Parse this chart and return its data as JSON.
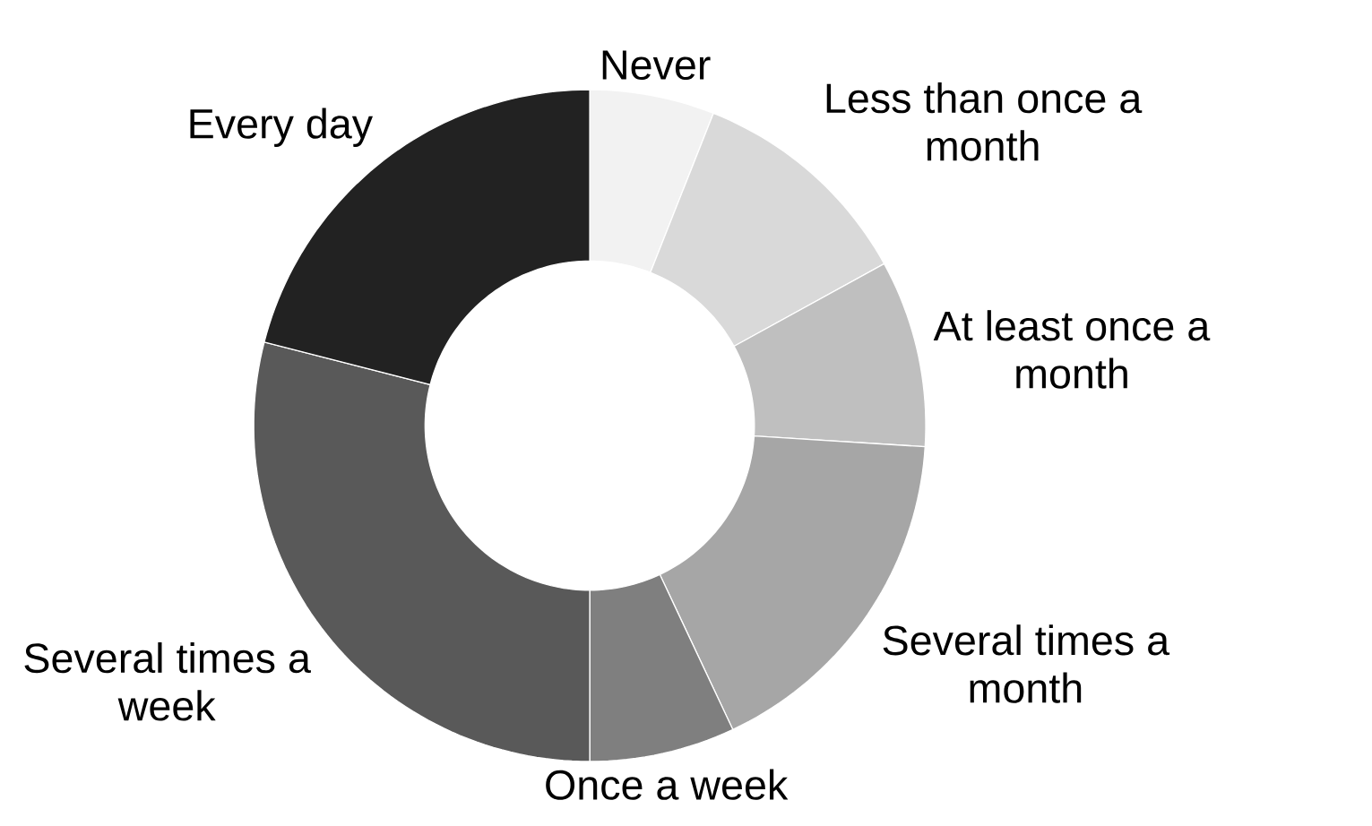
{
  "chart_data": {
    "type": "donut",
    "categories": [
      "Never",
      "Less than once a month",
      "At least once a month",
      "Several times a month",
      "Once a week",
      "Several times a week",
      "Every day"
    ],
    "values": [
      6,
      11,
      9,
      17,
      7,
      29,
      21
    ],
    "colors": [
      "#f2f2f2",
      "#d9d9d9",
      "#bfbfbf",
      "#a6a6a6",
      "#7f7f7f",
      "#595959",
      "#222222"
    ]
  }
}
